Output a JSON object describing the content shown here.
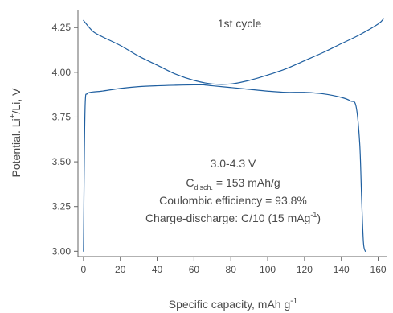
{
  "chart_data": {
    "type": "line",
    "title": "1st cycle",
    "xlabel": "Specific capacity, mAh g",
    "xlabel_sup": "-1",
    "ylabel": "Potential. Li",
    "ylabel_sup": "+",
    "ylabel_suffix": "/Li, V",
    "xlim": [
      -3,
      165
    ],
    "ylim": [
      2.97,
      4.35
    ],
    "xticks": [
      0,
      20,
      40,
      60,
      80,
      100,
      120,
      140,
      160
    ],
    "yticks": [
      3.0,
      3.25,
      3.5,
      3.75,
      4.0,
      4.25
    ],
    "ytick_labels": [
      "3.00",
      "3.25",
      "3.50",
      "3.75",
      "4.00",
      "4.25"
    ],
    "grid": false,
    "annotations": {
      "line1": "3.0-4.3 V",
      "line2_base": "C",
      "line2_sub": "disch.",
      "line2_rest": " = 153 mAh/g",
      "line3": "Coulombic efficiency = 93.8%",
      "line4_pre": "Charge-discharge: C/10 (15 mAg",
      "line4_sup": "-1",
      "line4_post": ")"
    },
    "series": [
      {
        "color": "#1f5fa0",
        "x": [
          0,
          0.5,
          1,
          2,
          5,
          10,
          20,
          30,
          40,
          50,
          60,
          65,
          70,
          80,
          90,
          100,
          110,
          120,
          130,
          140,
          145,
          148,
          150,
          151,
          152,
          153
        ],
        "y": [
          3.0,
          3.55,
          3.84,
          3.88,
          3.89,
          3.895,
          3.91,
          3.92,
          3.925,
          3.928,
          3.93,
          3.93,
          3.925,
          3.915,
          3.905,
          3.895,
          3.888,
          3.888,
          3.88,
          3.86,
          3.84,
          3.81,
          3.6,
          3.3,
          3.05,
          3.0
        ]
      },
      {
        "color": "#1f5fa0",
        "x": [
          0,
          5,
          10,
          20,
          30,
          40,
          50,
          60,
          70,
          80,
          90,
          100,
          110,
          120,
          130,
          140,
          150,
          160,
          163
        ],
        "y": [
          4.29,
          4.23,
          4.2,
          4.15,
          4.09,
          4.04,
          3.99,
          3.955,
          3.935,
          3.935,
          3.955,
          3.985,
          4.02,
          4.065,
          4.11,
          4.16,
          4.21,
          4.27,
          4.3
        ]
      }
    ]
  }
}
